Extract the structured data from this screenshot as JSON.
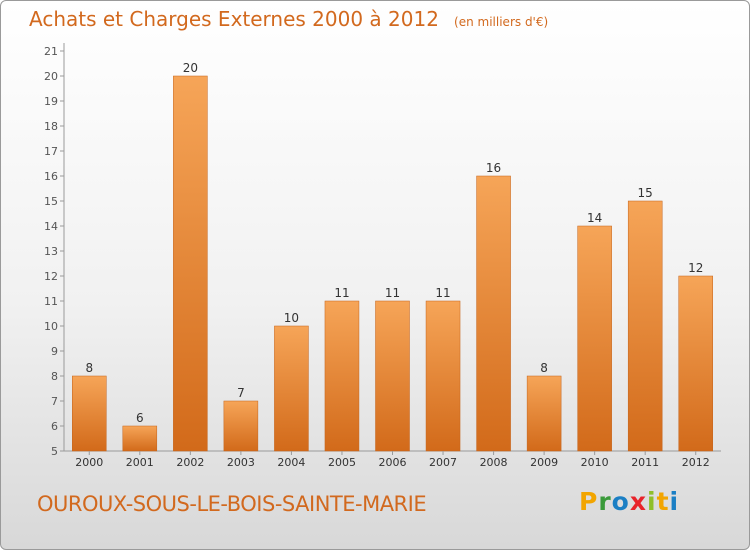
{
  "header": {
    "title": "Achats et Charges Externes 2000 à 2012",
    "unit": "(en milliers d'€)"
  },
  "footer": {
    "place": "OUROUX-SOUS-LE-BOIS-SAINTE-MARIE",
    "logo_letters": [
      "P",
      "r",
      "o",
      "x",
      "i",
      "t",
      "i"
    ],
    "logo_colors": [
      "#f2a500",
      "#3a9a3a",
      "#1b7fc4",
      "#e8232a",
      "#8fbf2a",
      "#f2a500",
      "#1b7fc4"
    ]
  },
  "colors": {
    "bar_light": "#f6a558",
    "bar_dark": "#d26a1a",
    "title": "#d2691e"
  },
  "chart_data": {
    "type": "bar",
    "title": "Achats et Charges Externes 2000 à 2012",
    "subtitle": "(en milliers d'€)",
    "categories": [
      "2000",
      "2001",
      "2002",
      "2003",
      "2004",
      "2005",
      "2006",
      "2007",
      "2008",
      "2009",
      "2010",
      "2011",
      "2012"
    ],
    "values": [
      8,
      6,
      20,
      7,
      10,
      11,
      11,
      11,
      16,
      8,
      14,
      15,
      12
    ],
    "ylim": [
      5,
      21
    ],
    "yticks": [
      5,
      6,
      7,
      8,
      9,
      10,
      11,
      12,
      13,
      14,
      15,
      16,
      17,
      18,
      19,
      20,
      21
    ],
    "grid": false,
    "data_labels": true
  }
}
